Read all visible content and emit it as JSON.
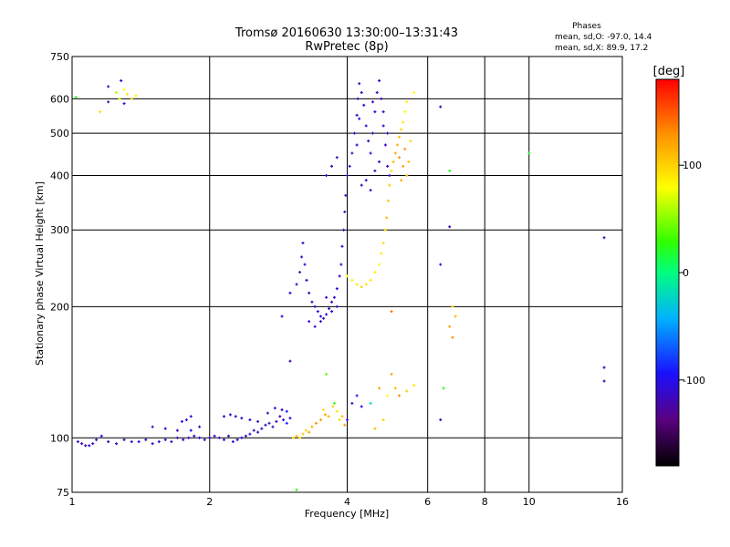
{
  "chart_data": {
    "type": "scatter",
    "title": "Tromsø 20160630 13:30:00–13:31:43",
    "subtitle": "RwPretec (8p)",
    "info": {
      "heading": "Phases",
      "line1": "mean, sd,O: -97.0, 14.4",
      "line2": "mean, sd,X:  89.9, 17.2"
    },
    "xlabel": "Frequency [MHz]",
    "ylabel": "Stationary phase Virtual Height [km]",
    "x_scale": "log",
    "y_scale": "log",
    "xlim": [
      1,
      16
    ],
    "ylim": [
      75,
      750
    ],
    "grid": true,
    "xticks": [
      {
        "value": 1,
        "label": "1"
      },
      {
        "value": 2,
        "label": "2"
      },
      {
        "value": 4,
        "label": "4"
      },
      {
        "value": 6,
        "label": "6"
      },
      {
        "value": 8,
        "label": "8"
      },
      {
        "value": 10,
        "label": "10"
      },
      {
        "value": 16,
        "label": "16"
      }
    ],
    "yticks": [
      {
        "value": 75,
        "label": "75"
      },
      {
        "value": 100,
        "label": "100"
      },
      {
        "value": 200,
        "label": "200"
      },
      {
        "value": 300,
        "label": "300"
      },
      {
        "value": 400,
        "label": "400"
      },
      {
        "value": 500,
        "label": "500"
      },
      {
        "value": 600,
        "label": "600"
      },
      {
        "value": 750,
        "label": "750"
      }
    ],
    "colorbar": {
      "label": "[deg]",
      "range": [
        -180,
        180
      ],
      "ticks": [
        {
          "value": 100,
          "label": "100"
        },
        {
          "value": 0,
          "label": "0"
        },
        {
          "value": -100,
          "label": "-100"
        }
      ]
    },
    "points_columns": [
      "freq_MHz",
      "height_km",
      "phase_deg"
    ],
    "points": [
      [
        1.02,
        605,
        20
      ],
      [
        1.2,
        640,
        -110
      ],
      [
        1.25,
        620,
        60
      ],
      [
        1.27,
        600,
        70
      ],
      [
        1.3,
        630,
        80
      ],
      [
        1.32,
        615,
        90
      ],
      [
        1.38,
        610,
        85
      ],
      [
        1.2,
        590,
        -120
      ],
      [
        1.3,
        585,
        -110
      ],
      [
        1.15,
        560,
        95
      ],
      [
        1.35,
        600,
        100
      ],
      [
        1.28,
        660,
        -105
      ],
      [
        1.03,
        98,
        -110
      ],
      [
        1.05,
        97,
        -120
      ],
      [
        1.07,
        96,
        -125
      ],
      [
        1.09,
        96,
        -115
      ],
      [
        1.11,
        97,
        -110
      ],
      [
        1.13,
        99,
        -120
      ],
      [
        1.16,
        101,
        -100
      ],
      [
        1.2,
        98,
        -110
      ],
      [
        1.25,
        97,
        -110
      ],
      [
        1.3,
        99,
        -120
      ],
      [
        1.35,
        98,
        -115
      ],
      [
        1.4,
        98,
        -105
      ],
      [
        1.45,
        99,
        -110
      ],
      [
        1.5,
        97,
        -112
      ],
      [
        1.55,
        98,
        -108
      ],
      [
        1.6,
        99,
        -115
      ],
      [
        1.65,
        98,
        -110
      ],
      [
        1.7,
        100,
        -120
      ],
      [
        1.75,
        99,
        -115
      ],
      [
        1.8,
        100,
        -110
      ],
      [
        1.85,
        101,
        -112
      ],
      [
        1.9,
        100,
        -108
      ],
      [
        1.95,
        99,
        -115
      ],
      [
        2.0,
        100,
        -110
      ],
      [
        2.05,
        101,
        -112
      ],
      [
        2.1,
        100,
        -118
      ],
      [
        2.15,
        99,
        -110
      ],
      [
        2.2,
        101,
        -112
      ],
      [
        2.25,
        98,
        -108
      ],
      [
        2.3,
        99,
        -115
      ],
      [
        2.35,
        100,
        -110
      ],
      [
        2.4,
        101,
        -112
      ],
      [
        2.45,
        102,
        -108
      ],
      [
        2.5,
        104,
        -115
      ],
      [
        2.55,
        103,
        -110
      ],
      [
        2.6,
        105,
        -112
      ],
      [
        2.65,
        107,
        -108
      ],
      [
        2.7,
        108,
        -115
      ],
      [
        2.75,
        106,
        -110
      ],
      [
        2.8,
        109,
        -112
      ],
      [
        2.85,
        112,
        -120
      ],
      [
        2.9,
        110,
        -100
      ],
      [
        2.95,
        108,
        -90
      ],
      [
        3.0,
        111,
        -110
      ],
      [
        1.5,
        106,
        -120
      ],
      [
        1.6,
        105,
        -110
      ],
      [
        1.7,
        104,
        -115
      ],
      [
        1.78,
        110,
        -108
      ],
      [
        1.82,
        104,
        -100
      ],
      [
        1.9,
        106,
        -120
      ],
      [
        2.15,
        112,
        -110
      ],
      [
        2.22,
        113,
        -105
      ],
      [
        2.28,
        112,
        -110
      ],
      [
        2.35,
        111,
        -115
      ],
      [
        2.45,
        110,
        -110
      ],
      [
        2.55,
        109,
        -108
      ],
      [
        2.68,
        114,
        -112
      ],
      [
        2.78,
        117,
        -105
      ],
      [
        2.88,
        116,
        -120
      ],
      [
        2.95,
        115,
        -90
      ],
      [
        3.0,
        150,
        -120
      ],
      [
        2.88,
        190,
        -110
      ],
      [
        1.74,
        109,
        -100
      ],
      [
        1.82,
        112,
        -115
      ],
      [
        3.05,
        100,
        100
      ],
      [
        3.1,
        101,
        110
      ],
      [
        3.15,
        100,
        95
      ],
      [
        3.2,
        102,
        105
      ],
      [
        3.25,
        104,
        100
      ],
      [
        3.3,
        103,
        120
      ],
      [
        3.35,
        106,
        115
      ],
      [
        3.42,
        108,
        130
      ],
      [
        3.5,
        110,
        125
      ],
      [
        3.58,
        113,
        120
      ],
      [
        3.64,
        112,
        110
      ],
      [
        3.72,
        118,
        100
      ],
      [
        3.8,
        115,
        90
      ],
      [
        3.85,
        110,
        95
      ],
      [
        3.9,
        112,
        105
      ],
      [
        3.95,
        107,
        120
      ],
      [
        3.1,
        76,
        20
      ],
      [
        3.6,
        140,
        40
      ],
      [
        3.75,
        120,
        30
      ],
      [
        3.55,
        116,
        95
      ],
      [
        3.0,
        215,
        -110
      ],
      [
        3.1,
        225,
        -115
      ],
      [
        3.15,
        240,
        -120
      ],
      [
        3.18,
        260,
        -110
      ],
      [
        3.2,
        280,
        -115
      ],
      [
        3.23,
        250,
        -108
      ],
      [
        3.26,
        230,
        -112
      ],
      [
        3.3,
        215,
        -118
      ],
      [
        3.35,
        205,
        -110
      ],
      [
        3.4,
        200,
        -120
      ],
      [
        3.45,
        195,
        -105
      ],
      [
        3.5,
        190,
        -110
      ],
      [
        3.55,
        188,
        -115
      ],
      [
        3.6,
        192,
        -108
      ],
      [
        3.65,
        198,
        -120
      ],
      [
        3.7,
        205,
        -110
      ],
      [
        3.75,
        210,
        -112
      ],
      [
        3.8,
        220,
        -108
      ],
      [
        3.85,
        235,
        -115
      ],
      [
        3.88,
        250,
        -110
      ],
      [
        3.9,
        275,
        -112
      ],
      [
        3.93,
        300,
        -108
      ],
      [
        3.95,
        330,
        -115
      ],
      [
        3.97,
        360,
        -110
      ],
      [
        4.0,
        400,
        -112
      ],
      [
        3.3,
        185,
        -110
      ],
      [
        3.4,
        180,
        -120
      ],
      [
        3.5,
        185,
        -112
      ],
      [
        3.6,
        210,
        -115
      ],
      [
        3.7,
        195,
        -108
      ],
      [
        3.8,
        200,
        -118
      ],
      [
        4.05,
        420,
        -110
      ],
      [
        4.1,
        450,
        -115
      ],
      [
        4.15,
        500,
        -108
      ],
      [
        4.2,
        550,
        -120
      ],
      [
        4.22,
        600,
        -112
      ],
      [
        4.25,
        650,
        -110
      ],
      [
        4.3,
        620,
        -115
      ],
      [
        4.35,
        580,
        -108
      ],
      [
        4.4,
        520,
        -112
      ],
      [
        4.45,
        480,
        -118
      ],
      [
        4.5,
        450,
        -110
      ],
      [
        4.55,
        500,
        -115
      ],
      [
        4.6,
        560,
        -108
      ],
      [
        4.65,
        620,
        -112
      ],
      [
        4.7,
        660,
        -110
      ],
      [
        4.75,
        600,
        -115
      ],
      [
        4.8,
        520,
        -108
      ],
      [
        4.85,
        470,
        -112
      ],
      [
        4.9,
        420,
        -118
      ],
      [
        4.95,
        400,
        -110
      ],
      [
        4.3,
        380,
        -115
      ],
      [
        4.4,
        390,
        -112
      ],
      [
        4.5,
        370,
        -108
      ],
      [
        4.6,
        410,
        -110
      ],
      [
        4.7,
        430,
        -115
      ],
      [
        4.2,
        470,
        -112
      ],
      [
        4.8,
        560,
        -118
      ],
      [
        4.9,
        500,
        -110
      ],
      [
        4.25,
        540,
        -108
      ],
      [
        4.55,
        590,
        -115
      ],
      [
        3.6,
        400,
        -110
      ],
      [
        3.7,
        420,
        -120
      ],
      [
        3.8,
        440,
        -115
      ],
      [
        4.0,
        235,
        80
      ],
      [
        4.1,
        230,
        85
      ],
      [
        4.2,
        225,
        90
      ],
      [
        4.3,
        222,
        100
      ],
      [
        4.4,
        225,
        95
      ],
      [
        4.5,
        230,
        90
      ],
      [
        4.6,
        240,
        85
      ],
      [
        4.7,
        250,
        80
      ],
      [
        4.75,
        265,
        90
      ],
      [
        4.8,
        280,
        95
      ],
      [
        4.85,
        300,
        100
      ],
      [
        4.88,
        320,
        110
      ],
      [
        4.92,
        350,
        105
      ],
      [
        4.95,
        380,
        100
      ],
      [
        5.0,
        410,
        95
      ],
      [
        5.05,
        430,
        110
      ],
      [
        5.1,
        450,
        120
      ],
      [
        5.15,
        470,
        115
      ],
      [
        5.2,
        490,
        110
      ],
      [
        5.25,
        510,
        100
      ],
      [
        5.3,
        530,
        90
      ],
      [
        5.35,
        560,
        80
      ],
      [
        5.4,
        590,
        85
      ],
      [
        5.2,
        440,
        130
      ],
      [
        5.3,
        420,
        120
      ],
      [
        5.4,
        400,
        110
      ],
      [
        5.45,
        430,
        105
      ],
      [
        5.35,
        460,
        125
      ],
      [
        5.25,
        390,
        115
      ],
      [
        5.5,
        480,
        95
      ],
      [
        5.6,
        620,
        80
      ],
      [
        4.1,
        120,
        -110
      ],
      [
        4.2,
        125,
        -90
      ],
      [
        4.3,
        118,
        -100
      ],
      [
        4.5,
        120,
        -20
      ],
      [
        4.7,
        130,
        120
      ],
      [
        4.8,
        110,
        100
      ],
      [
        4.9,
        125,
        80
      ],
      [
        5.0,
        140,
        120
      ],
      [
        5.1,
        130,
        110
      ],
      [
        5.2,
        125,
        130
      ],
      [
        5.4,
        128,
        100
      ],
      [
        5.6,
        132,
        90
      ],
      [
        4.0,
        110,
        -110
      ],
      [
        4.6,
        105,
        110
      ],
      [
        5.0,
        195,
        140
      ],
      [
        6.4,
        575,
        -110
      ],
      [
        6.7,
        410,
        20
      ],
      [
        6.7,
        305,
        -120
      ],
      [
        6.4,
        250,
        -110
      ],
      [
        6.8,
        200,
        100
      ],
      [
        6.9,
        190,
        110
      ],
      [
        6.7,
        180,
        120
      ],
      [
        6.8,
        170,
        130
      ],
      [
        6.5,
        130,
        20
      ],
      [
        6.4,
        110,
        -110
      ],
      [
        10.0,
        450,
        20
      ],
      [
        14.6,
        288,
        -120
      ],
      [
        14.6,
        145,
        -110
      ],
      [
        14.6,
        135,
        -115
      ]
    ]
  }
}
